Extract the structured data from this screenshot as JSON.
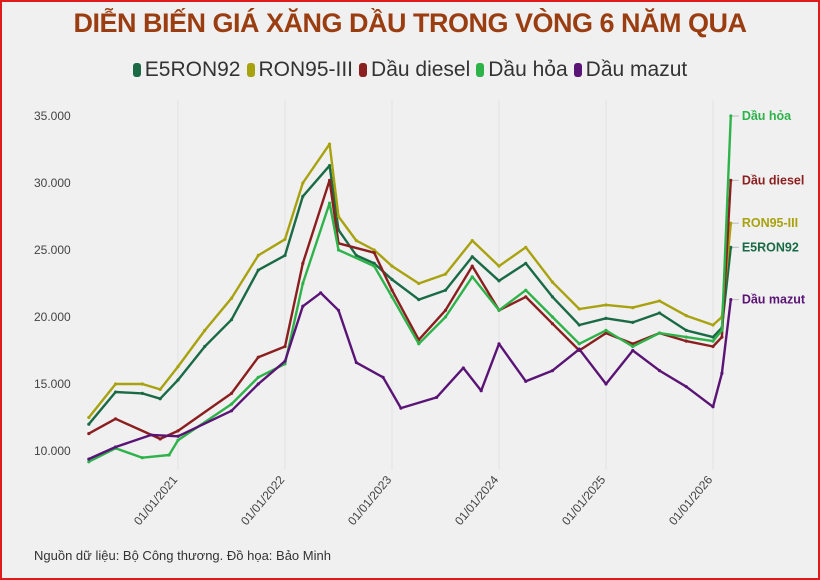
{
  "chart_data": {
    "type": "line",
    "title": "DIỄN BIẾN GIÁ XĂNG DẦU TRONG VÒNG 6 NĂM QUA",
    "xlabel": "",
    "ylabel": "",
    "ylim": [
      10000,
      35000
    ],
    "xlim": [
      "2020-03",
      "2026-03"
    ],
    "y_ticks": [
      "10.000",
      "15.000",
      "20.000",
      "25.000",
      "30.000",
      "35.000"
    ],
    "y_tick_values": [
      10000,
      15000,
      20000,
      25000,
      30000,
      35000
    ],
    "x_ticks": [
      "01/01/2021",
      "01/01/2022",
      "01/01/2023",
      "01/01/2024",
      "01/01/2025",
      "01/01/2026"
    ],
    "grid": "vertical",
    "legend": "top",
    "series": [
      {
        "name": "E5RON92",
        "end_label": "E5RON92",
        "color": "#1a6b45",
        "points": [
          [
            "2020-03",
            12000
          ],
          [
            "2020-06",
            14400
          ],
          [
            "2020-09",
            14300
          ],
          [
            "2020-11",
            13900
          ],
          [
            "2021-01",
            15300
          ],
          [
            "2021-04",
            17800
          ],
          [
            "2021-07",
            19800
          ],
          [
            "2021-10",
            23500
          ],
          [
            "2022-01",
            24600
          ],
          [
            "2022-03",
            29000
          ],
          [
            "2022-06",
            31300
          ],
          [
            "2022-07",
            26500
          ],
          [
            "2022-09",
            24600
          ],
          [
            "2022-11",
            24000
          ],
          [
            "2023-01",
            22800
          ],
          [
            "2023-04",
            21300
          ],
          [
            "2023-07",
            22000
          ],
          [
            "2023-10",
            24500
          ],
          [
            "2024-01",
            22700
          ],
          [
            "2024-04",
            24000
          ],
          [
            "2024-07",
            21500
          ],
          [
            "2024-10",
            19400
          ],
          [
            "2025-01",
            19900
          ],
          [
            "2025-04",
            19600
          ],
          [
            "2025-07",
            20300
          ],
          [
            "2025-10",
            19000
          ],
          [
            "2026-01",
            18500
          ],
          [
            "2026-02",
            19200
          ],
          [
            "2026-03",
            25200
          ]
        ]
      },
      {
        "name": "RON95-III",
        "end_label": "RON95-III",
        "color": "#a8a20e",
        "points": [
          [
            "2020-03",
            12500
          ],
          [
            "2020-06",
            15000
          ],
          [
            "2020-09",
            15000
          ],
          [
            "2020-11",
            14600
          ],
          [
            "2021-01",
            16300
          ],
          [
            "2021-04",
            19000
          ],
          [
            "2021-07",
            21400
          ],
          [
            "2021-10",
            24600
          ],
          [
            "2022-01",
            25800
          ],
          [
            "2022-03",
            30000
          ],
          [
            "2022-06",
            32900
          ],
          [
            "2022-07",
            27500
          ],
          [
            "2022-09",
            25700
          ],
          [
            "2022-11",
            25000
          ],
          [
            "2023-01",
            23800
          ],
          [
            "2023-04",
            22500
          ],
          [
            "2023-07",
            23200
          ],
          [
            "2023-10",
            25700
          ],
          [
            "2024-01",
            23800
          ],
          [
            "2024-04",
            25200
          ],
          [
            "2024-07",
            22600
          ],
          [
            "2024-10",
            20600
          ],
          [
            "2025-01",
            20900
          ],
          [
            "2025-04",
            20700
          ],
          [
            "2025-07",
            21200
          ],
          [
            "2025-10",
            20100
          ],
          [
            "2026-01",
            19400
          ],
          [
            "2026-02",
            20000
          ],
          [
            "2026-03",
            27000
          ]
        ]
      },
      {
        "name": "Dầu diesel",
        "end_label": "Dầu diesel",
        "color": "#8b1e1e",
        "points": [
          [
            "2020-03",
            11300
          ],
          [
            "2020-06",
            12400
          ],
          [
            "2020-11",
            10900
          ],
          [
            "2021-01",
            11500
          ],
          [
            "2021-07",
            14300
          ],
          [
            "2021-10",
            17000
          ],
          [
            "2022-01",
            17800
          ],
          [
            "2022-03",
            24000
          ],
          [
            "2022-06",
            30200
          ],
          [
            "2022-07",
            25500
          ],
          [
            "2022-11",
            24800
          ],
          [
            "2023-01",
            22000
          ],
          [
            "2023-04",
            18300
          ],
          [
            "2023-07",
            20500
          ],
          [
            "2023-10",
            23800
          ],
          [
            "2024-01",
            20500
          ],
          [
            "2024-04",
            21500
          ],
          [
            "2024-07",
            19500
          ],
          [
            "2024-10",
            17500
          ],
          [
            "2025-01",
            18800
          ],
          [
            "2025-04",
            18000
          ],
          [
            "2025-07",
            18800
          ],
          [
            "2025-10",
            18200
          ],
          [
            "2026-01",
            17800
          ],
          [
            "2026-02",
            18500
          ],
          [
            "2026-03",
            30200
          ]
        ]
      },
      {
        "name": "Dầu hỏa",
        "end_label": "Dầu hỏa",
        "color": "#2db34a",
        "points": [
          [
            "2020-03",
            9200
          ],
          [
            "2020-06",
            10200
          ],
          [
            "2020-09",
            9500
          ],
          [
            "2020-12",
            9700
          ],
          [
            "2021-01",
            10800
          ],
          [
            "2021-07",
            13500
          ],
          [
            "2021-10",
            15500
          ],
          [
            "2022-01",
            16500
          ],
          [
            "2022-03",
            22500
          ],
          [
            "2022-06",
            28500
          ],
          [
            "2022-07",
            25000
          ],
          [
            "2022-11",
            23800
          ],
          [
            "2023-01",
            21500
          ],
          [
            "2023-04",
            18000
          ],
          [
            "2023-07",
            20000
          ],
          [
            "2023-10",
            23000
          ],
          [
            "2024-01",
            20500
          ],
          [
            "2024-04",
            22000
          ],
          [
            "2024-07",
            20000
          ],
          [
            "2024-10",
            18000
          ],
          [
            "2025-01",
            19000
          ],
          [
            "2025-04",
            17800
          ],
          [
            "2025-07",
            18800
          ],
          [
            "2025-10",
            18500
          ],
          [
            "2026-01",
            18200
          ],
          [
            "2026-02",
            19000
          ],
          [
            "2026-03",
            35000
          ]
        ]
      },
      {
        "name": "Dầu mazut",
        "end_label": "Dầu mazut",
        "color": "#5a1475",
        "points": [
          [
            "2020-03",
            9400
          ],
          [
            "2020-06",
            10300
          ],
          [
            "2020-10",
            11200
          ],
          [
            "2021-01",
            11100
          ],
          [
            "2021-07",
            13000
          ],
          [
            "2021-10",
            15000
          ],
          [
            "2022-01",
            16700
          ],
          [
            "2022-03",
            20800
          ],
          [
            "2022-05",
            21800
          ],
          [
            "2022-07",
            20500
          ],
          [
            "2022-09",
            16600
          ],
          [
            "2022-12",
            15500
          ],
          [
            "2023-02",
            13200
          ],
          [
            "2023-06",
            14000
          ],
          [
            "2023-09",
            16200
          ],
          [
            "2023-11",
            14500
          ],
          [
            "2024-01",
            18000
          ],
          [
            "2024-04",
            15200
          ],
          [
            "2024-07",
            16000
          ],
          [
            "2024-10",
            17600
          ],
          [
            "2025-01",
            15000
          ],
          [
            "2025-04",
            17500
          ],
          [
            "2025-07",
            16000
          ],
          [
            "2025-10",
            14800
          ],
          [
            "2026-01",
            13300
          ],
          [
            "2026-02",
            15800
          ],
          [
            "2026-03",
            21300
          ]
        ]
      }
    ]
  },
  "source": "Nguồn dữ liệu: Bộ Công thương. Đồ họa: Bảo Minh"
}
